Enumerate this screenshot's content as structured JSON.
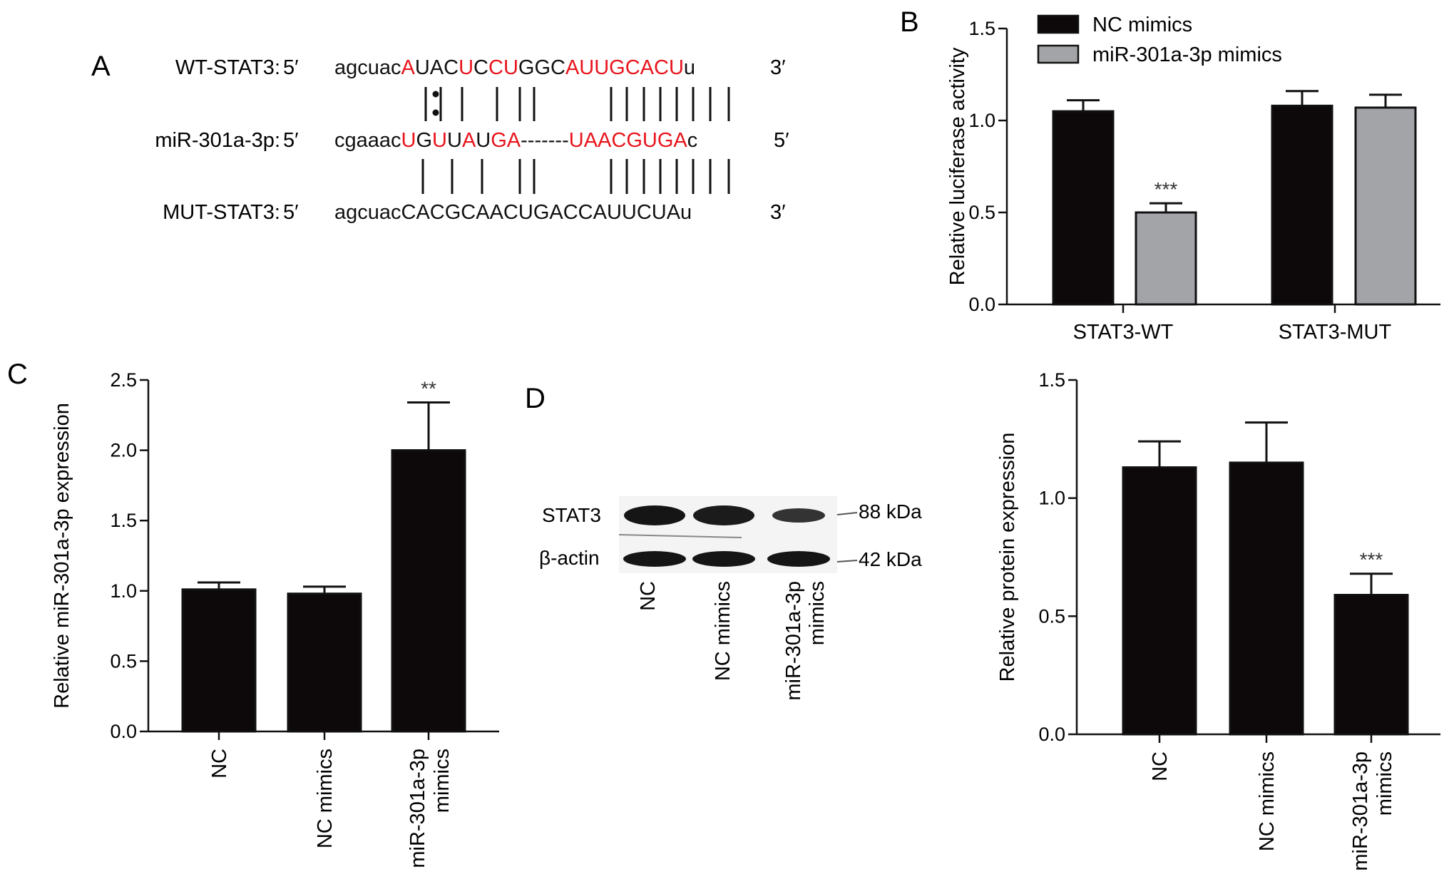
{
  "panels": {
    "a": "A",
    "b": "B",
    "c": "C",
    "d": "D"
  },
  "colors": {
    "black": "#0d090a",
    "gray": "#a3a4a7",
    "red": "#e8141c",
    "blot_bg": "#f4f4f4",
    "band": "#151515"
  },
  "sequences": {
    "prime5": "5′",
    "prime3": "3′",
    "rows": [
      {
        "label": "WT-STAT3:",
        "tail": "3′",
        "segs": [
          [
            "agcuac",
            0
          ],
          [
            "A",
            1
          ],
          [
            "UAC",
            0
          ],
          [
            "U",
            1
          ],
          [
            "C",
            0
          ],
          [
            "CU",
            1
          ],
          [
            "GGC",
            0
          ],
          [
            "AUUGCACU",
            1
          ],
          [
            "u",
            0
          ]
        ]
      },
      {
        "label": "miR-301a-3p:",
        "tail": "5′",
        "segs": [
          [
            "cgaaac",
            0
          ],
          [
            "U",
            1
          ],
          [
            "G",
            0
          ],
          [
            "U",
            1
          ],
          [
            "U",
            0
          ],
          [
            "A",
            1
          ],
          [
            "U",
            0
          ],
          [
            "GA",
            1
          ],
          [
            "-------",
            0
          ],
          [
            "UAACGUGA",
            1
          ],
          [
            "c",
            0
          ]
        ]
      },
      {
        "label": "MUT-STAT3:",
        "tail": "3′",
        "segs": [
          [
            "agcuacCACGCAACUGACCAUUCUAu",
            0
          ]
        ]
      }
    ]
  },
  "western_blot": {
    "bands": [
      {
        "label": "STAT3",
        "size": "88 kDa",
        "intensity": [
          1.0,
          0.95,
          0.7
        ]
      },
      {
        "label": "β-actin",
        "size": "42 kDa",
        "intensity": [
          1.0,
          1.0,
          1.0
        ]
      }
    ],
    "lanes": [
      "NC",
      "NC mimics",
      "miR-301a-3p mimics"
    ]
  },
  "chart_data": [
    {
      "panel": "B",
      "type": "bar",
      "categories": [
        "STAT3-WT",
        "STAT3-MUT"
      ],
      "series": [
        {
          "name": "NC mimics",
          "values": [
            1.05,
            1.08
          ],
          "errors": [
            0.06,
            0.08
          ]
        },
        {
          "name": "miR-301a-3p mimics",
          "values": [
            0.5,
            1.07
          ],
          "errors": [
            0.05,
            0.07
          ]
        }
      ],
      "significance": [
        "***",
        ""
      ],
      "ylabel": "Relative luciferase activity",
      "ylim": [
        0,
        1.5
      ],
      "yticks": [
        "0.0",
        "0.5",
        "1.0",
        "1.5"
      ],
      "legend_position": "top-left"
    },
    {
      "panel": "C",
      "type": "bar",
      "categories": [
        "NC",
        "NC mimics",
        "miR-301a-3p mimics"
      ],
      "values": [
        1.01,
        0.98,
        2.0
      ],
      "errors": [
        0.05,
        0.05,
        0.34
      ],
      "significance": [
        "",
        "",
        "**"
      ],
      "ylabel": "Relative miR-301a-3p expression",
      "ylim": [
        0,
        2.5
      ],
      "yticks": [
        "0.0",
        "0.5",
        "1.0",
        "1.5",
        "2.0",
        "2.5"
      ]
    },
    {
      "panel": "D",
      "type": "bar",
      "categories": [
        "NC",
        "NC mimics",
        "miR-301a-3p mimics"
      ],
      "values": [
        1.13,
        1.15,
        0.59
      ],
      "errors": [
        0.11,
        0.17,
        0.09
      ],
      "significance": [
        "",
        "",
        "***"
      ],
      "ylabel": "Relative protein expression",
      "ylim": [
        0,
        1.5
      ],
      "yticks": [
        "0.0",
        "0.5",
        "1.0",
        "1.5"
      ]
    }
  ]
}
